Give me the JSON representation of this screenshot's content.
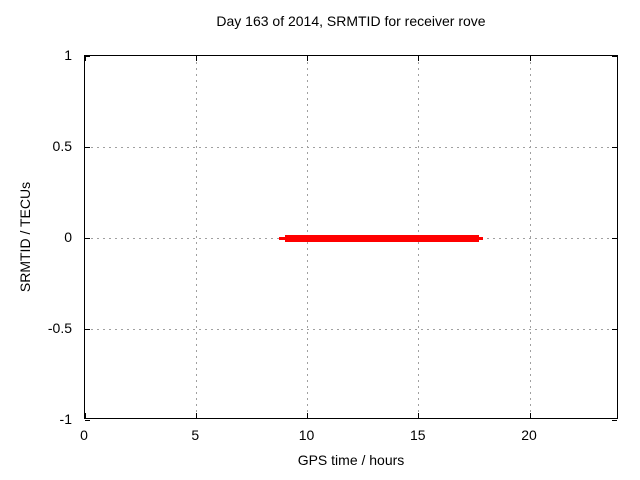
{
  "figure": {
    "title": "Day 163 of 2014, SRMTID for receiver rove",
    "xlabel": "GPS time / hours",
    "ylabel": "SRMTID / TECUs"
  },
  "chart_data": {
    "type": "line",
    "title": "Day 163 of 2014, SRMTID for receiver rove",
    "xlabel": "GPS time / hours",
    "ylabel": "SRMTID / TECUs",
    "xlim": [
      0,
      24
    ],
    "ylim": [
      -1,
      1
    ],
    "xticks": [
      {
        "value": 0,
        "label": "0"
      },
      {
        "value": 5,
        "label": "5"
      },
      {
        "value": 10,
        "label": "10"
      },
      {
        "value": 15,
        "label": "15"
      },
      {
        "value": 20,
        "label": "20"
      }
    ],
    "yticks": [
      {
        "value": 1,
        "label": "1"
      },
      {
        "value": 0.5,
        "label": "0.5"
      },
      {
        "value": 0,
        "label": "0"
      },
      {
        "value": -0.5,
        "label": "-0.5"
      },
      {
        "value": -1,
        "label": "-1"
      }
    ],
    "grid": true,
    "grid_style": "dashed",
    "legend": false,
    "series": [
      {
        "name": "SRMTID",
        "y": 0,
        "x_start": 8.7,
        "x_end": 17.9,
        "thick_x_start": 9.0,
        "thick_x_end": 17.7,
        "points": [
          [
            8.7,
            0
          ],
          [
            17.9,
            0
          ]
        ]
      }
    ],
    "colors": {
      "line": "#ff0000",
      "grid": "#a0a0a0",
      "axis": "#000000",
      "text": "#000000",
      "background": "#ffffff"
    }
  }
}
